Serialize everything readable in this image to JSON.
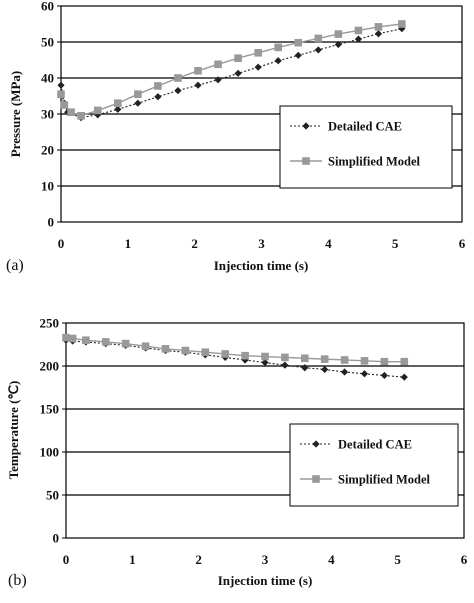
{
  "chart_data": [
    {
      "type": "line",
      "panel_label": "(a)",
      "xlabel": "Injection time (s)",
      "ylabel": "Pressure (MPa)",
      "xlim": [
        0,
        6
      ],
      "ylim": [
        0,
        60
      ],
      "xticks": [
        0,
        1,
        2,
        3,
        4,
        5,
        6
      ],
      "yticks": [
        0,
        10,
        20,
        30,
        40,
        50,
        60
      ],
      "grid": "horizontal",
      "legend_position": "center-right",
      "series": [
        {
          "name": "Detailed CAE",
          "color": "#222222",
          "marker": "diamond",
          "line": "dotted",
          "x": [
            0.0,
            0.05,
            0.1,
            0.3,
            0.55,
            0.85,
            1.15,
            1.45,
            1.75,
            2.05,
            2.35,
            2.65,
            2.95,
            3.25,
            3.55,
            3.85,
            4.15,
            4.45,
            4.75,
            5.1
          ],
          "y": [
            38.0,
            33.0,
            30.5,
            29.0,
            29.8,
            31.3,
            33.0,
            34.8,
            36.5,
            38.0,
            39.5,
            41.3,
            43.0,
            44.8,
            46.3,
            47.8,
            49.3,
            50.8,
            52.3,
            53.7
          ]
        },
        {
          "name": "Simplified Model",
          "color": "#999999",
          "marker": "square",
          "line": "solid",
          "x": [
            0.0,
            0.05,
            0.15,
            0.3,
            0.55,
            0.85,
            1.15,
            1.45,
            1.75,
            2.05,
            2.35,
            2.65,
            2.95,
            3.25,
            3.55,
            3.85,
            4.15,
            4.45,
            4.75,
            5.1
          ],
          "y": [
            35.5,
            32.5,
            30.5,
            29.5,
            31.0,
            33.0,
            35.5,
            37.8,
            40.0,
            42.0,
            43.8,
            45.5,
            47.0,
            48.5,
            49.8,
            51.0,
            52.2,
            53.2,
            54.2,
            55.0
          ]
        }
      ]
    },
    {
      "type": "line",
      "panel_label": "(b)",
      "xlabel": "Injection time (s)",
      "ylabel": "Temperature (℃)",
      "xlim": [
        0,
        6
      ],
      "ylim": [
        0,
        250
      ],
      "xticks": [
        0,
        1,
        2,
        3,
        4,
        5,
        6
      ],
      "yticks": [
        0,
        50,
        100,
        150,
        200,
        250
      ],
      "grid": "horizontal",
      "legend_position": "center-right",
      "series": [
        {
          "name": "Detailed CAE",
          "color": "#222222",
          "marker": "diamond",
          "line": "dotted",
          "x": [
            0.0,
            0.1,
            0.3,
            0.6,
            0.9,
            1.2,
            1.5,
            1.8,
            2.1,
            2.4,
            2.7,
            3.0,
            3.3,
            3.6,
            3.9,
            4.2,
            4.5,
            4.8,
            5.1
          ],
          "y": [
            230,
            229,
            228,
            226,
            224,
            221,
            218,
            216,
            213,
            210,
            207,
            204,
            201,
            198,
            196,
            193,
            191,
            189,
            187
          ]
        },
        {
          "name": "Simplified Model",
          "color": "#999999",
          "marker": "square",
          "line": "solid",
          "x": [
            0.0,
            0.1,
            0.3,
            0.6,
            0.9,
            1.2,
            1.5,
            1.8,
            2.1,
            2.4,
            2.7,
            3.0,
            3.3,
            3.6,
            3.9,
            4.2,
            4.5,
            4.8,
            5.1
          ],
          "y": [
            233,
            232,
            230,
            228,
            226,
            223,
            220,
            218,
            216,
            214,
            212,
            211,
            210,
            209,
            208,
            207,
            206,
            205,
            205
          ]
        }
      ]
    }
  ]
}
